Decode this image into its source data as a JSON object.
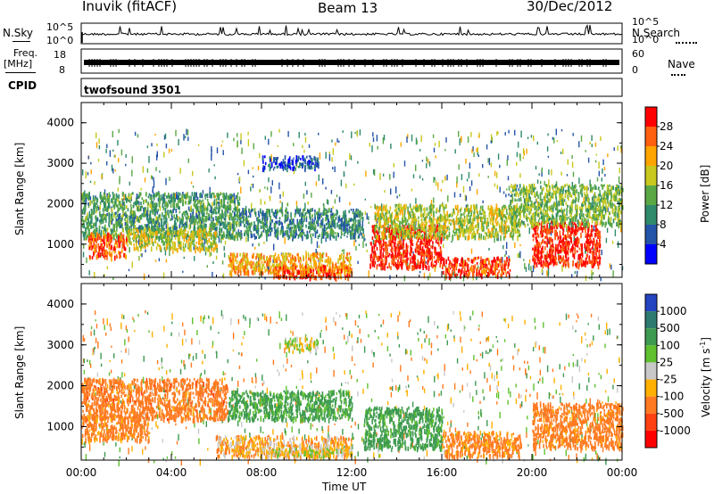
{
  "header": {
    "station": "Inuvik (fitACF)",
    "beam": "Beam 13",
    "date": "30/Dec/2012"
  },
  "strip": {
    "nsky_label": "N.Sky",
    "nsky_ticks": [
      "10^5",
      "10^0"
    ],
    "nsearch_label": "N.Search",
    "nsearch_ticks": [
      "10^5",
      "10^0"
    ],
    "freq_label": "Freq.",
    "freq_unit": "[MHz]",
    "freq_ticks": [
      "18",
      "8"
    ],
    "nave_label": "Nave",
    "nave_ticks": [
      "60",
      "0"
    ],
    "cpid_label": "CPID",
    "cpid_value": "twofsound 3501"
  },
  "chart_data": [
    {
      "type": "heatmap",
      "panel": "power",
      "ylabel": "Slant Range [km]",
      "xlabel": "Time UT",
      "x_ticks": [
        "00:00",
        "04:00",
        "08:00",
        "12:00",
        "16:00",
        "20:00",
        "00:00"
      ],
      "xlim_hours": [
        0,
        24
      ],
      "y_ticks": [
        1000,
        2000,
        3000,
        4000
      ],
      "ylim": [
        180,
        4500
      ],
      "colorbar": {
        "label": "Power [dB]",
        "ticks": [
          4,
          8,
          12,
          16,
          20,
          24,
          28
        ],
        "range": [
          0,
          32
        ],
        "colors": [
          "#0000ff",
          "#2454a8",
          "#2e8a6a",
          "#5aa845",
          "#c8c81e",
          "#ffa500",
          "#ff6010",
          "#ff0000"
        ]
      },
      "echo_regions": [
        {
          "t": [
            0,
            7
          ],
          "range": [
            1200,
            2300
          ],
          "value": 12
        },
        {
          "t": [
            7,
            12.5
          ],
          "range": [
            1200,
            1900
          ],
          "value": 10
        },
        {
          "t": [
            0.3,
            2
          ],
          "range": [
            700,
            1300
          ],
          "value": 26
        },
        {
          "t": [
            2,
            6
          ],
          "range": [
            900,
            1400
          ],
          "value": 18
        },
        {
          "t": [
            6.5,
            12
          ],
          "range": [
            300,
            800
          ],
          "value": 22
        },
        {
          "t": [
            8.5,
            12
          ],
          "range": [
            200,
            500
          ],
          "value": 26
        },
        {
          "t": [
            12.8,
            16
          ],
          "range": [
            450,
            1500
          ],
          "value": 29
        },
        {
          "t": [
            16,
            19
          ],
          "range": [
            250,
            700
          ],
          "value": 28
        },
        {
          "t": [
            13,
            19.5
          ],
          "range": [
            1200,
            2000
          ],
          "value": 17
        },
        {
          "t": [
            20,
            23
          ],
          "range": [
            500,
            1600
          ],
          "value": 29
        },
        {
          "t": [
            19,
            24
          ],
          "range": [
            1500,
            2500
          ],
          "value": 15
        },
        {
          "t": [
            8,
            10.5
          ],
          "range": [
            2900,
            3200
          ],
          "value": 6
        }
      ]
    },
    {
      "type": "heatmap",
      "panel": "velocity",
      "ylabel": "Slant Range [km]",
      "xlabel": "Time UT",
      "x_ticks": [
        "00:00",
        "04:00",
        "08:00",
        "12:00",
        "16:00",
        "20:00",
        "00:00"
      ],
      "xlim_hours": [
        0,
        24
      ],
      "y_ticks": [
        1000,
        2000,
        3000,
        4000
      ],
      "ylim": [
        180,
        4500
      ],
      "colorbar": {
        "label": "Velocity [m s",
        "label_sup": "-1",
        "label_end": "]",
        "ticks": [
          "1000",
          "500",
          "100",
          "25",
          "-25",
          "-100",
          "-500",
          "-1000"
        ],
        "colors": [
          "#2444c0",
          "#2e7a70",
          "#3e9a50",
          "#60c030",
          "#c8c8c8",
          "#ffb000",
          "#ff7a20",
          "#ff4010",
          "#ff0000"
        ]
      },
      "echo_regions": [
        {
          "t": [
            0,
            6.5
          ],
          "range": [
            1200,
            2200
          ],
          "value": -300
        },
        {
          "t": [
            6.5,
            12
          ],
          "range": [
            1200,
            1900
          ],
          "value": 150
        },
        {
          "t": [
            0,
            3
          ],
          "range": [
            700,
            1300
          ],
          "value": -200
        },
        {
          "t": [
            6,
            12
          ],
          "range": [
            300,
            800
          ],
          "value": -80
        },
        {
          "t": [
            8.5,
            12
          ],
          "range": [
            300,
            500
          ],
          "value": 0
        },
        {
          "t": [
            12.5,
            16
          ],
          "range": [
            500,
            1500
          ],
          "value": 200
        },
        {
          "t": [
            16,
            19.5
          ],
          "range": [
            300,
            900
          ],
          "value": -150
        },
        {
          "t": [
            20,
            24
          ],
          "range": [
            500,
            1600
          ],
          "value": -250
        },
        {
          "t": [
            9,
            10.5
          ],
          "range": [
            2900,
            3200
          ],
          "value": 0
        }
      ]
    }
  ]
}
